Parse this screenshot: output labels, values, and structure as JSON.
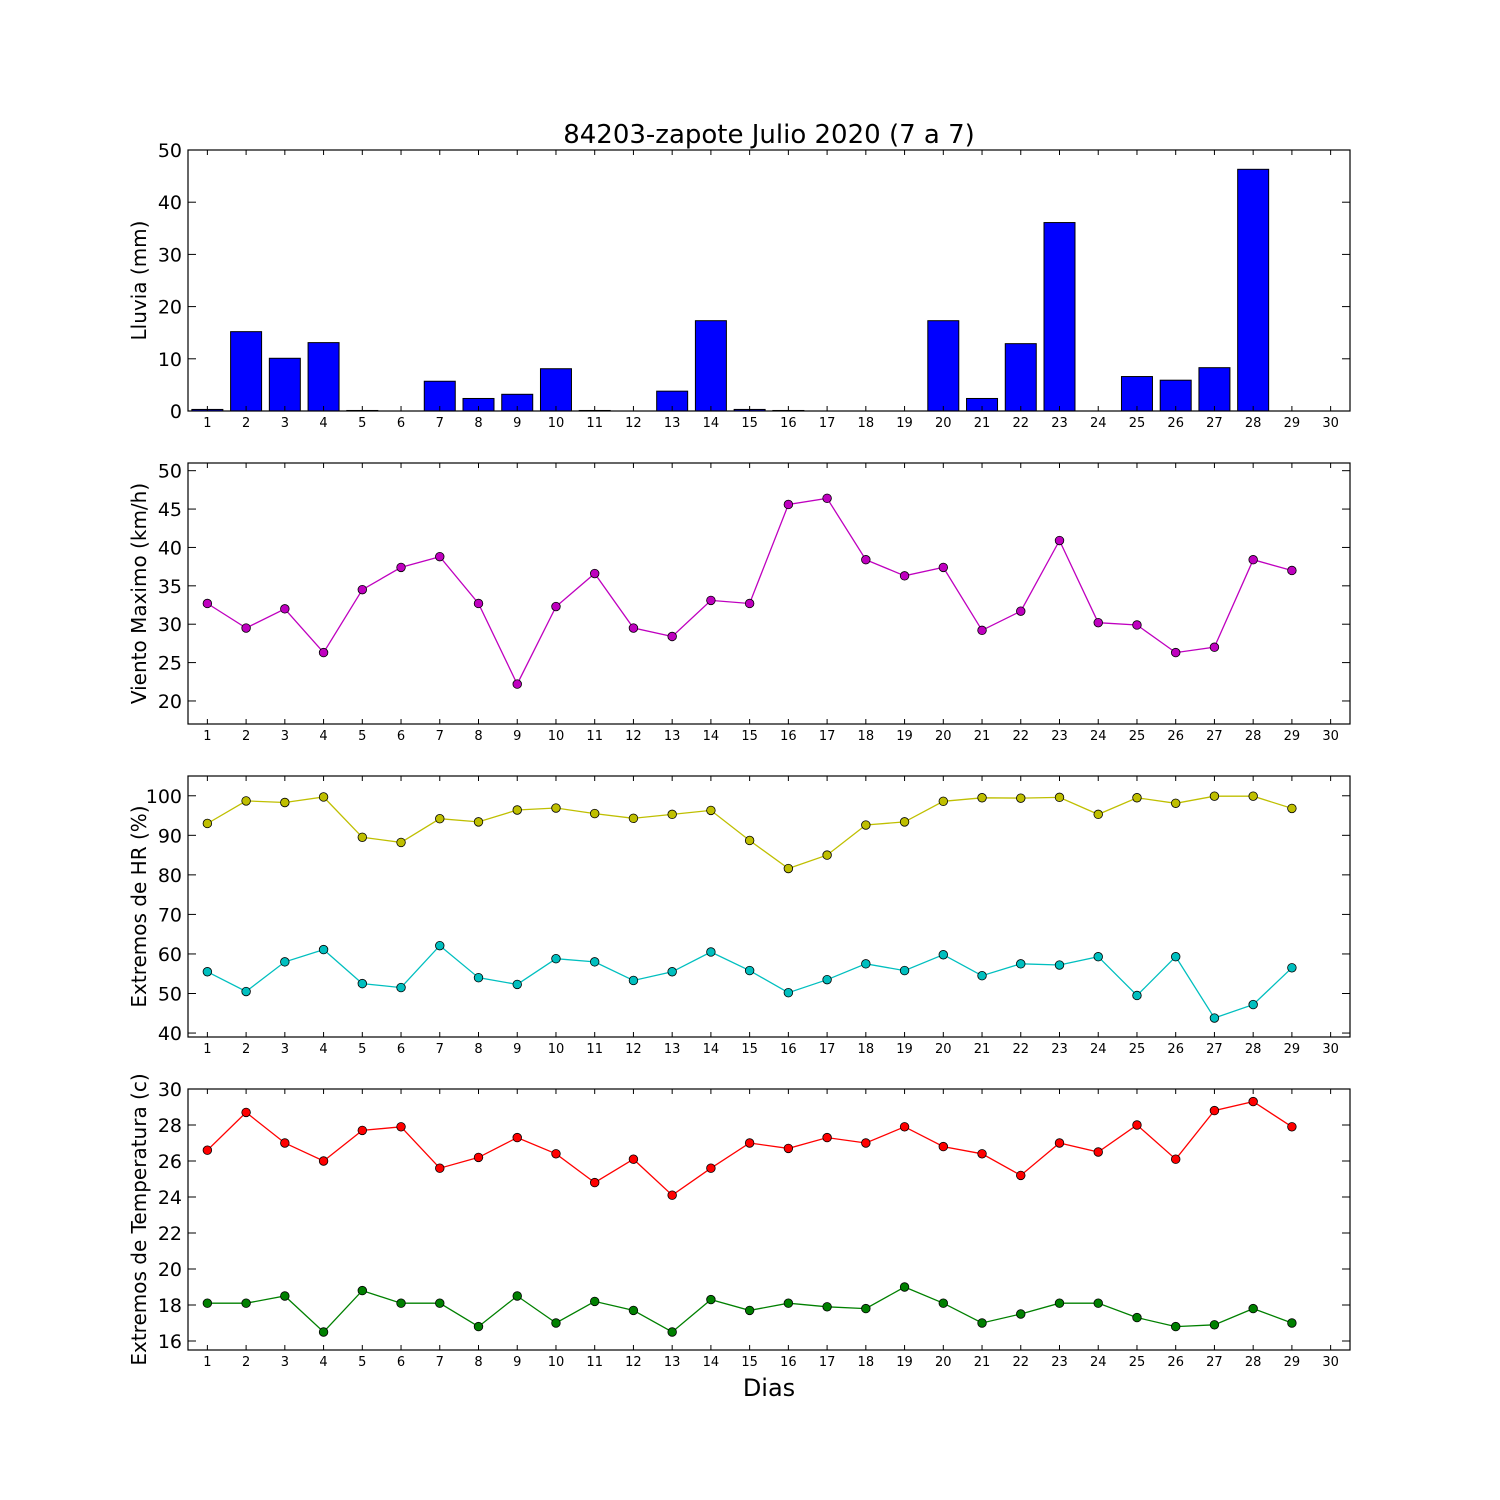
{
  "title": "84203-zapote Julio 2020  (7 a 7)",
  "xlabel": "Dias",
  "chart_data": [
    {
      "type": "bar",
      "ylabel": "Lluvia (mm)",
      "ylim": [
        0,
        50
      ],
      "yticks": [
        0,
        10,
        20,
        30,
        40,
        50
      ],
      "xlim": [
        0.5,
        30.5
      ],
      "xticks": [
        1,
        2,
        3,
        4,
        5,
        6,
        7,
        8,
        9,
        10,
        11,
        12,
        13,
        14,
        15,
        16,
        17,
        18,
        19,
        20,
        21,
        22,
        23,
        24,
        25,
        26,
        27,
        28,
        29,
        30
      ],
      "x": [
        1,
        2,
        3,
        4,
        5,
        6,
        7,
        8,
        9,
        10,
        11,
        12,
        13,
        14,
        15,
        16,
        17,
        18,
        19,
        20,
        21,
        22,
        23,
        24,
        25,
        26,
        27,
        28,
        29,
        30
      ],
      "series": [
        {
          "color": "#0000ff",
          "values": [
            0.3,
            15.2,
            10.1,
            13.1,
            0.1,
            0,
            5.7,
            2.4,
            3.2,
            8.1,
            0.1,
            0,
            3.8,
            17.3,
            0.3,
            0.1,
            0,
            0,
            0,
            17.3,
            2.4,
            12.9,
            36.1,
            0,
            6.6,
            5.9,
            8.3,
            46.3,
            0,
            0
          ]
        }
      ]
    },
    {
      "type": "line",
      "ylabel": "Viento Maximo (km/h)",
      "ylim": [
        17,
        51
      ],
      "yticks": [
        20,
        25,
        30,
        35,
        40,
        45,
        50
      ],
      "xlim": [
        0.5,
        30.5
      ],
      "xticks": [
        1,
        2,
        3,
        4,
        5,
        6,
        7,
        8,
        9,
        10,
        11,
        12,
        13,
        14,
        15,
        16,
        17,
        18,
        19,
        20,
        21,
        22,
        23,
        24,
        25,
        26,
        27,
        28,
        29,
        30
      ],
      "x": [
        1,
        2,
        3,
        4,
        5,
        6,
        7,
        8,
        9,
        10,
        11,
        12,
        13,
        14,
        15,
        16,
        17,
        18,
        19,
        20,
        21,
        22,
        23,
        24,
        25,
        26,
        27,
        28,
        29
      ],
      "series": [
        {
          "color": "#bf00bf",
          "values": [
            32.7,
            29.5,
            32.0,
            26.3,
            34.5,
            37.4,
            38.8,
            32.7,
            22.2,
            32.3,
            36.6,
            29.5,
            28.4,
            33.1,
            32.7,
            45.6,
            46.4,
            38.4,
            36.3,
            37.4,
            29.2,
            31.7,
            40.9,
            30.2,
            29.9,
            26.3,
            27.0,
            38.4,
            37.0
          ]
        }
      ]
    },
    {
      "type": "line",
      "ylabel": "Extremos de HR (%)",
      "ylim": [
        39,
        105
      ],
      "yticks": [
        40,
        50,
        60,
        70,
        80,
        90,
        100
      ],
      "xlim": [
        0.5,
        30.5
      ],
      "xticks": [
        1,
        2,
        3,
        4,
        5,
        6,
        7,
        8,
        9,
        10,
        11,
        12,
        13,
        14,
        15,
        16,
        17,
        18,
        19,
        20,
        21,
        22,
        23,
        24,
        25,
        26,
        27,
        28,
        29,
        30
      ],
      "x": [
        1,
        2,
        3,
        4,
        5,
        6,
        7,
        8,
        9,
        10,
        11,
        12,
        13,
        14,
        15,
        16,
        17,
        18,
        19,
        20,
        21,
        22,
        23,
        24,
        25,
        26,
        27,
        28,
        29
      ],
      "series": [
        {
          "color": "#bfbf00",
          "values": [
            93,
            98.7,
            98.3,
            99.7,
            89.5,
            88.2,
            94.2,
            93.4,
            96.4,
            96.9,
            95.5,
            94.3,
            95.3,
            96.3,
            88.7,
            81.6,
            85.0,
            92.6,
            93.4,
            98.6,
            99.5,
            99.4,
            99.6,
            95.3,
            99.5,
            98.1,
            99.9,
            99.9,
            96.8
          ]
        },
        {
          "color": "#00bfbf",
          "values": [
            55.5,
            50.5,
            58.0,
            61.1,
            52.5,
            51.5,
            62.1,
            54.0,
            52.3,
            58.8,
            58.0,
            53.3,
            55.5,
            60.5,
            55.8,
            50.2,
            53.5,
            57.5,
            55.8,
            59.8,
            54.5,
            57.5,
            57.2,
            59.3,
            49.5,
            59.3,
            43.8,
            47.2,
            56.5
          ]
        }
      ]
    },
    {
      "type": "line",
      "ylabel": "Extremos de Temperatura (c)",
      "ylim": [
        15.5,
        30
      ],
      "yticks": [
        16,
        18,
        20,
        22,
        24,
        26,
        28,
        30
      ],
      "xlim": [
        0.5,
        30.5
      ],
      "xticks": [
        1,
        2,
        3,
        4,
        5,
        6,
        7,
        8,
        9,
        10,
        11,
        12,
        13,
        14,
        15,
        16,
        17,
        18,
        19,
        20,
        21,
        22,
        23,
        24,
        25,
        26,
        27,
        28,
        29,
        30
      ],
      "x": [
        1,
        2,
        3,
        4,
        5,
        6,
        7,
        8,
        9,
        10,
        11,
        12,
        13,
        14,
        15,
        16,
        17,
        18,
        19,
        20,
        21,
        22,
        23,
        24,
        25,
        26,
        27,
        28,
        29
      ],
      "series": [
        {
          "color": "#ff0000",
          "values": [
            26.6,
            28.7,
            27.0,
            26.0,
            27.7,
            27.9,
            25.6,
            26.2,
            27.3,
            26.4,
            24.8,
            26.1,
            24.1,
            25.6,
            27.0,
            26.7,
            27.3,
            27.0,
            27.9,
            26.8,
            26.4,
            25.2,
            27.0,
            26.5,
            28.0,
            26.1,
            28.8,
            29.3,
            27.9
          ]
        },
        {
          "color": "#008000",
          "values": [
            18.1,
            18.1,
            18.5,
            16.5,
            18.8,
            18.1,
            18.1,
            16.8,
            18.5,
            17.0,
            18.2,
            17.7,
            16.5,
            18.3,
            17.7,
            18.1,
            17.9,
            17.8,
            19.0,
            18.1,
            17.0,
            17.5,
            18.1,
            18.1,
            17.3,
            16.8,
            16.9,
            17.8,
            17.0
          ]
        }
      ]
    }
  ]
}
